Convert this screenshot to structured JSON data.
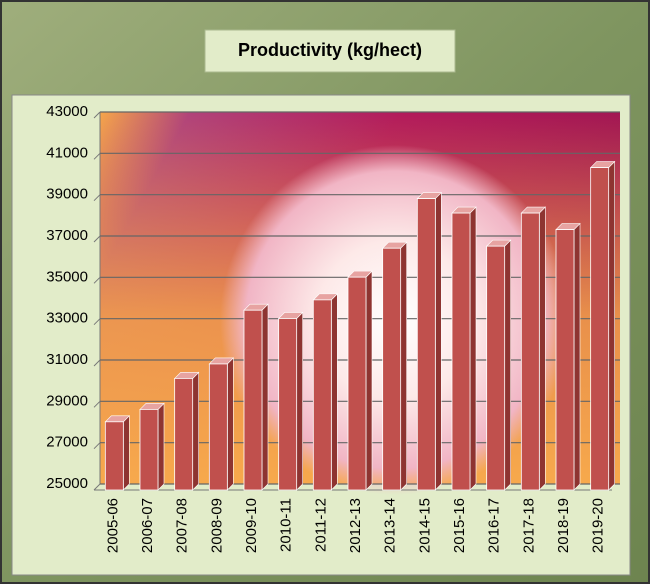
{
  "chart_data": {
    "type": "bar",
    "title": "Productivity (kg/hect)",
    "categories": [
      "2005-06",
      "2006-07",
      "2007-08",
      "2008-09",
      "2009-10",
      "2010-11",
      "2011-12",
      "2012-13",
      "2013-14",
      "2014-15",
      "2015-16",
      "2016-17",
      "2017-18",
      "2018-19",
      "2019-20"
    ],
    "values": [
      28300,
      28900,
      30400,
      31100,
      33700,
      33300,
      34200,
      35300,
      36700,
      39100,
      38400,
      36800,
      38400,
      37600,
      40600
    ],
    "color": "#c0504d",
    "ylim": [
      25000,
      43000
    ],
    "yticks": [
      25000,
      27000,
      29000,
      31000,
      33000,
      35000,
      37000,
      39000,
      41000,
      43000
    ],
    "grid": true
  }
}
